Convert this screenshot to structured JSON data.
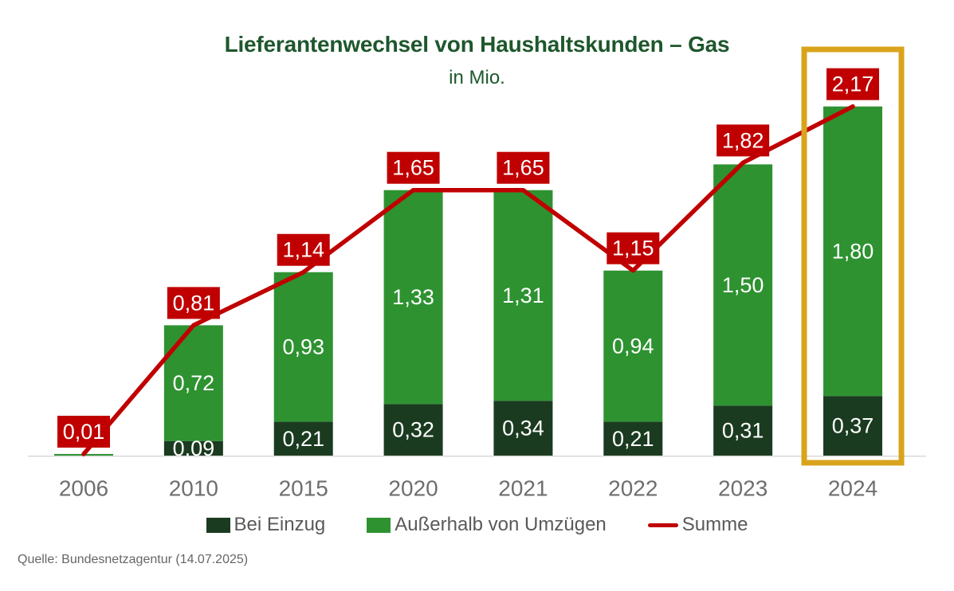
{
  "title": "Lieferantenwechsel von Haushaltskunden – Gas",
  "subtitle": "in Mio.",
  "source": "Quelle: Bundesnetzagentur (14.07.2025)",
  "colors": {
    "title": "#1d572c",
    "dark_green": "#1b3b20",
    "light_green": "#2e9231",
    "red": "#c00000",
    "highlight_gold": "#d9a41c",
    "axis_text": "#6e6e6e",
    "legend_text": "#595959",
    "baseline": "#d9d9d9",
    "bar_label_text": "#ffffff"
  },
  "chart_data": {
    "type": "bar",
    "stacked": true,
    "title": "Lieferantenwechsel von Haushaltskunden – Gas",
    "subtitle": "in Mio.",
    "xlabel": "",
    "ylabel": "in Mio.",
    "ylim": [
      0,
      2.4
    ],
    "grid": false,
    "legend_position": "bottom",
    "categories": [
      "2006",
      "2010",
      "2015",
      "2020",
      "2021",
      "2022",
      "2023",
      "2024"
    ],
    "series": [
      {
        "name": "Bei Einzug",
        "type": "bar-segment",
        "color": "#1b3b20",
        "values": [
          0,
          0.09,
          0.21,
          0.32,
          0.34,
          0.21,
          0.31,
          0.37
        ],
        "labels": [
          "",
          "0,09",
          "0,21",
          "0,32",
          "0,34",
          "0,21",
          "0,31",
          "0,37"
        ]
      },
      {
        "name": "Außerhalb von Umzügen",
        "type": "bar-segment",
        "color": "#2e9231",
        "values": [
          0.01,
          0.72,
          0.93,
          1.33,
          1.31,
          0.94,
          1.5,
          1.8
        ],
        "labels": [
          "",
          "0,72",
          "0,93",
          "1,33",
          "1,31",
          "0,94",
          "1,50",
          "1,80"
        ]
      },
      {
        "name": "Summe",
        "type": "line",
        "color": "#c00000",
        "values": [
          0.01,
          0.81,
          1.14,
          1.65,
          1.65,
          1.15,
          1.82,
          2.17
        ],
        "labels": [
          "0,01",
          "0,81",
          "1,14",
          "1,65",
          "1,65",
          "1,15",
          "1,82",
          "2,17"
        ]
      }
    ],
    "highlight": {
      "category": "2024",
      "color": "#d9a41c"
    }
  }
}
